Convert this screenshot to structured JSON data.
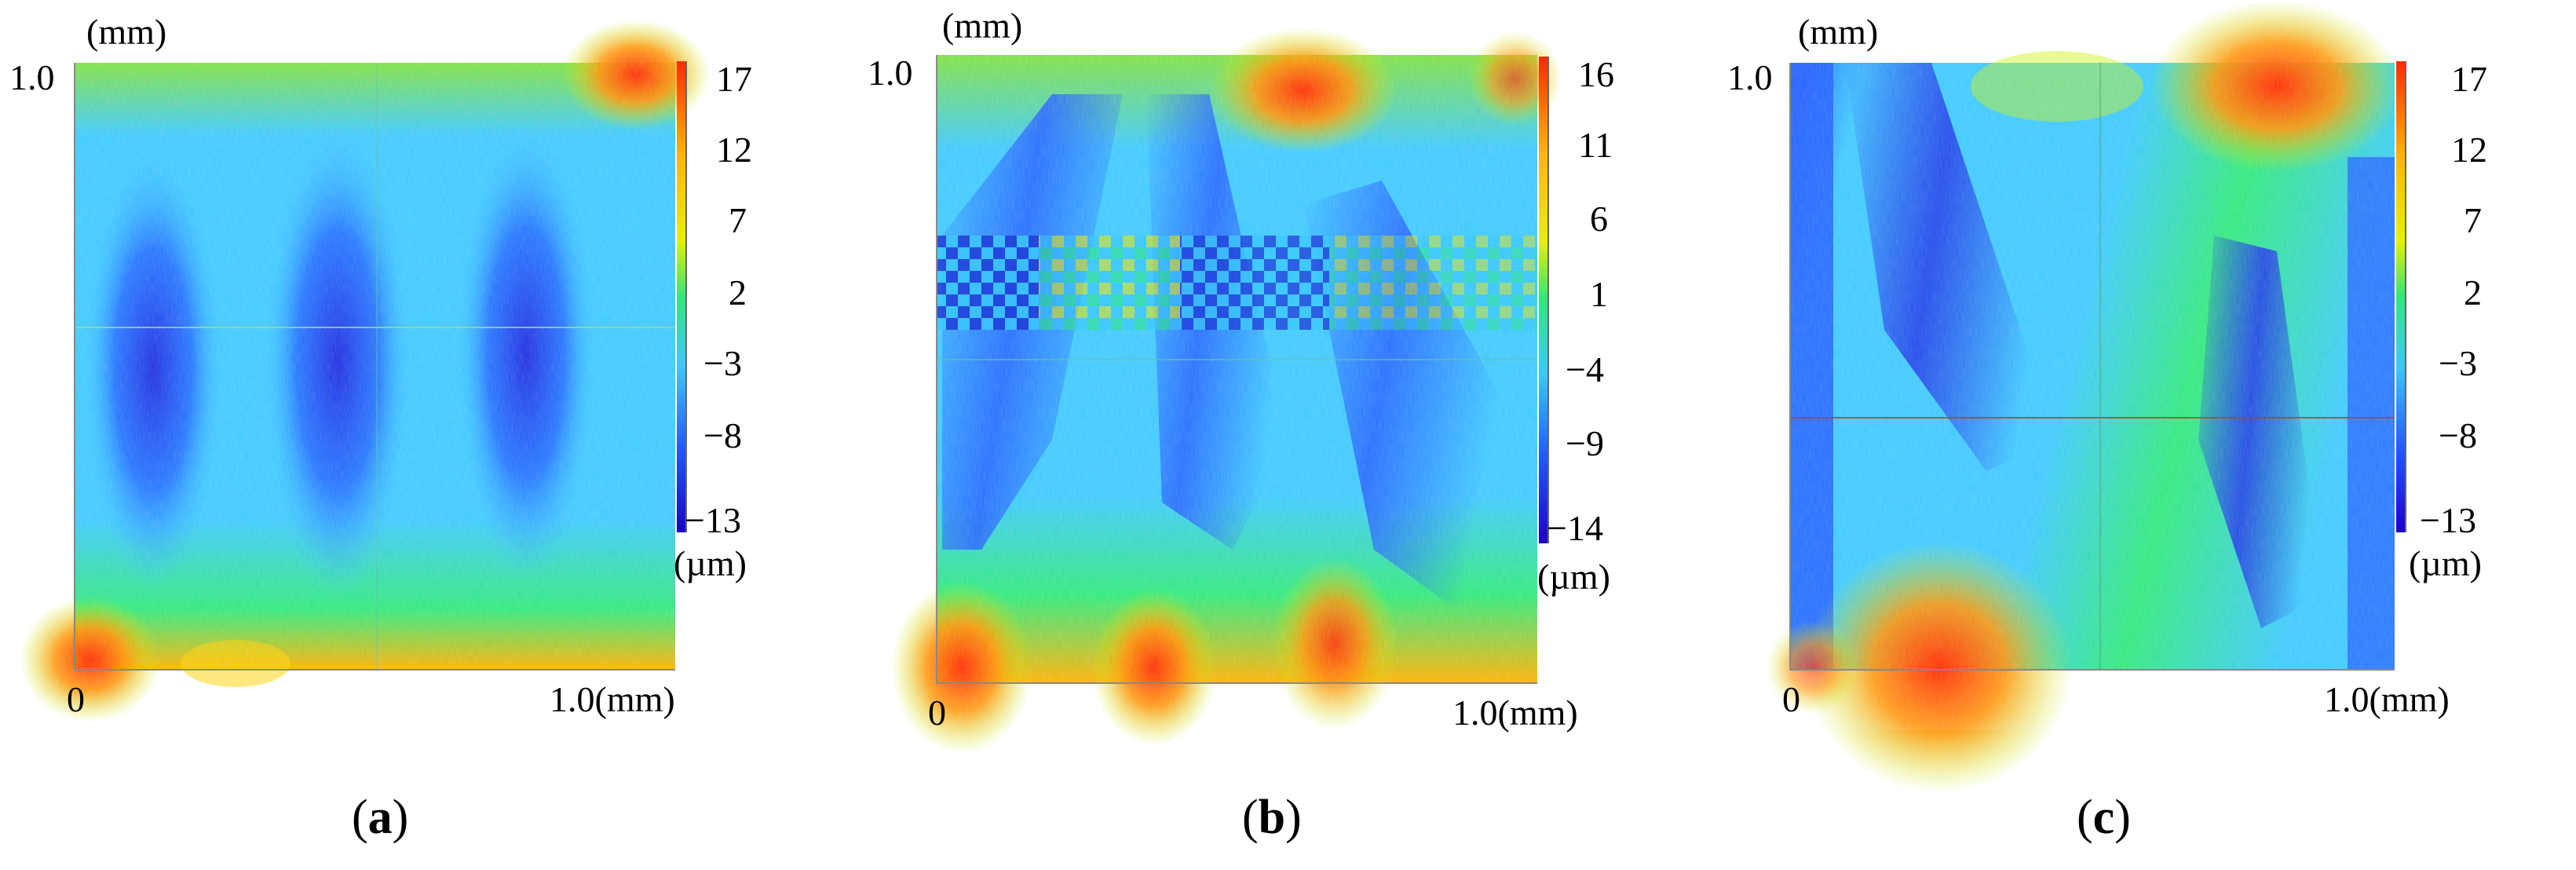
{
  "figure": {
    "panels": [
      {
        "id": "a",
        "caption": {
          "open": "(",
          "letter": "a",
          "close": ")"
        },
        "y_unit": "(mm)",
        "y_max": "1.0",
        "x_origin": "0",
        "x_max": "1.0(mm)",
        "colorbar_unit": "(µm)",
        "colorbar_ticks": [
          "17",
          "12",
          "7",
          "2",
          "−3",
          "−8",
          "−13"
        ],
        "colorbar_range": [
          -13,
          17
        ]
      },
      {
        "id": "b",
        "caption": {
          "open": "(",
          "letter": "b",
          "close": ")"
        },
        "y_unit": "(mm)",
        "y_max": "1.0",
        "x_origin": "0",
        "x_max": "1.0(mm)",
        "colorbar_unit": "(µm)",
        "colorbar_ticks": [
          "16",
          "11",
          "6",
          "1",
          "−4",
          "−9",
          "−14"
        ],
        "colorbar_range": [
          -14,
          16
        ]
      },
      {
        "id": "c",
        "caption": {
          "open": "(",
          "letter": "c",
          "close": ")"
        },
        "y_unit": "(mm)",
        "y_max": "1.0",
        "x_origin": "0",
        "x_max": "1.0(mm)",
        "colorbar_unit": "(µm)",
        "colorbar_ticks": [
          "17",
          "12",
          "7",
          "2",
          "−3",
          "−8",
          "−13"
        ],
        "colorbar_range": [
          -13,
          17
        ]
      }
    ],
    "colormap": [
      "#1c00c8",
      "#1f5cff",
      "#3cc8ff",
      "#2ee87a",
      "#c8f200",
      "#ffb400",
      "#ff2a00"
    ]
  }
}
